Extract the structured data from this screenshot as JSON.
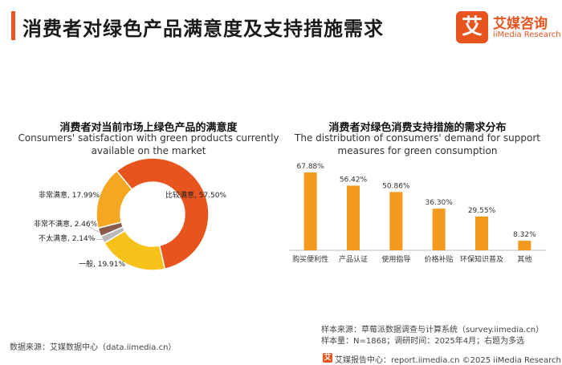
{
  "header": {
    "title": "消费者对绿色产品满意度及支持措施需求",
    "logo_cn": "艾媒咨询",
    "logo_en": "iiMedia Research",
    "logo_mark": "艾",
    "accent_color": "#e8541e"
  },
  "chart_data": [
    {
      "type": "pie",
      "title": "消费者对当前市场上绿色产品的满意度",
      "subtitle": "Consumers' satisfaction with green products currently available on the market",
      "donut": true,
      "slices": [
        {
          "label": "比较满意",
          "value": 57.5,
          "display": "比较满意, 57.50%",
          "color": "#e8541e"
        },
        {
          "label": "一般",
          "value": 19.91,
          "display": "一般, 19.91%",
          "color": "#f6c21a"
        },
        {
          "label": "不太满意",
          "value": 2.14,
          "display": "不太满意, 2.14%",
          "color": "#b9b9b9"
        },
        {
          "label": "非常不满意",
          "value": 2.46,
          "display": "非常不满意, 2.46%",
          "color": "#8a5a4a"
        },
        {
          "label": "非常满意",
          "value": 17.99,
          "display": "非常满意, 17.99%",
          "color": "#f5a623"
        }
      ]
    },
    {
      "type": "bar",
      "title": "消费者对绿色消费支持措施的需求分布",
      "subtitle": "The distribution of consumers' demand for support measures for green consumption",
      "categories": [
        "购买便利性",
        "产品认证",
        "使用指导",
        "价格补贴",
        "环保知识普及",
        "其他"
      ],
      "values": [
        67.88,
        56.42,
        50.86,
        36.3,
        29.55,
        8.32
      ],
      "labels": [
        "67.88%",
        "56.42%",
        "50.86%",
        "36.30%",
        "29.55%",
        "8.32%"
      ],
      "ylim": [
        0,
        70
      ],
      "bar_color": "#f39a1e"
    }
  ],
  "footer": {
    "data_source": "数据来源：艾媒数据中心（data.iimedia.cn）",
    "sample_source": "样本来源：草莓派数据调查与计算系统（survey.iimedia.cn）",
    "sample_size": "样本量：N=1868；调研时间：2025年4月；右题为多选",
    "report_center": "艾媒报告中心：report.iimedia.cn    ©2025  iiMedia Research  Inc"
  }
}
